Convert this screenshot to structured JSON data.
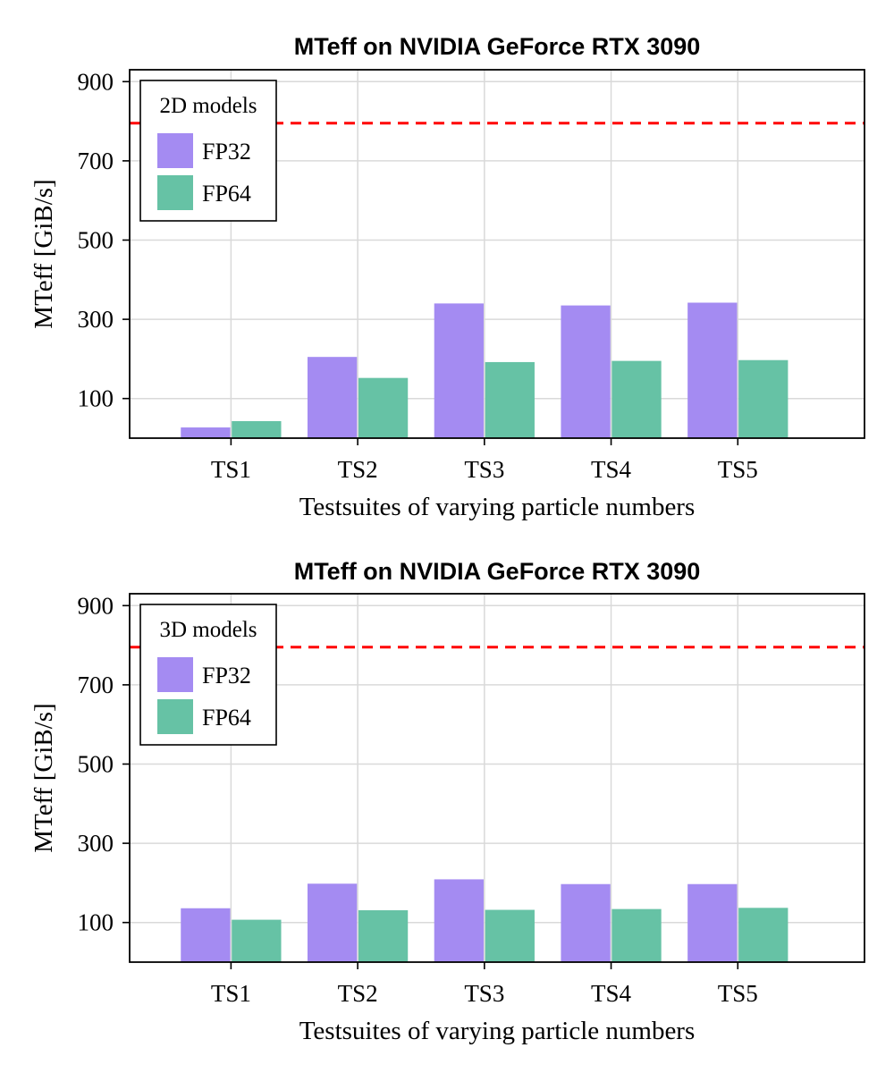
{
  "colors": {
    "fp32": "#a48bf2",
    "fp64": "#66c2a5",
    "reference": "#ff0000"
  },
  "chart_data": [
    {
      "type": "bar",
      "title": "MTeff on NVIDIA GeForce RTX 3090",
      "xlabel": "Testsuites of varying particle numbers",
      "ylabel": "MTeff [GiB/s]",
      "legend_title": "2D models",
      "legend_position": "top-left",
      "grid": true,
      "categories": [
        "TS1",
        "TS2",
        "TS3",
        "TS4",
        "TS5"
      ],
      "ylim": [
        0,
        930
      ],
      "yticks": [
        100,
        300,
        500,
        700,
        900
      ],
      "xlim": [
        0.2,
        6.0
      ],
      "reference_line": 795,
      "series": [
        {
          "name": "FP32",
          "values": [
            27,
            205,
            340,
            335,
            342
          ]
        },
        {
          "name": "FP64",
          "values": [
            43,
            152,
            192,
            195,
            197
          ]
        }
      ]
    },
    {
      "type": "bar",
      "title": "MTeff on NVIDIA GeForce RTX 3090",
      "xlabel": "Testsuites of varying particle numbers",
      "ylabel": "MTeff [GiB/s]",
      "legend_title": "3D models",
      "legend_position": "top-left",
      "grid": true,
      "categories": [
        "TS1",
        "TS2",
        "TS3",
        "TS4",
        "TS5"
      ],
      "ylim": [
        0,
        930
      ],
      "yticks": [
        100,
        300,
        500,
        700,
        900
      ],
      "xlim": [
        0.2,
        6.0
      ],
      "reference_line": 795,
      "series": [
        {
          "name": "FP32",
          "values": [
            136,
            198,
            209,
            197,
            197
          ]
        },
        {
          "name": "FP64",
          "values": [
            107,
            131,
            132,
            134,
            137
          ]
        }
      ]
    }
  ]
}
